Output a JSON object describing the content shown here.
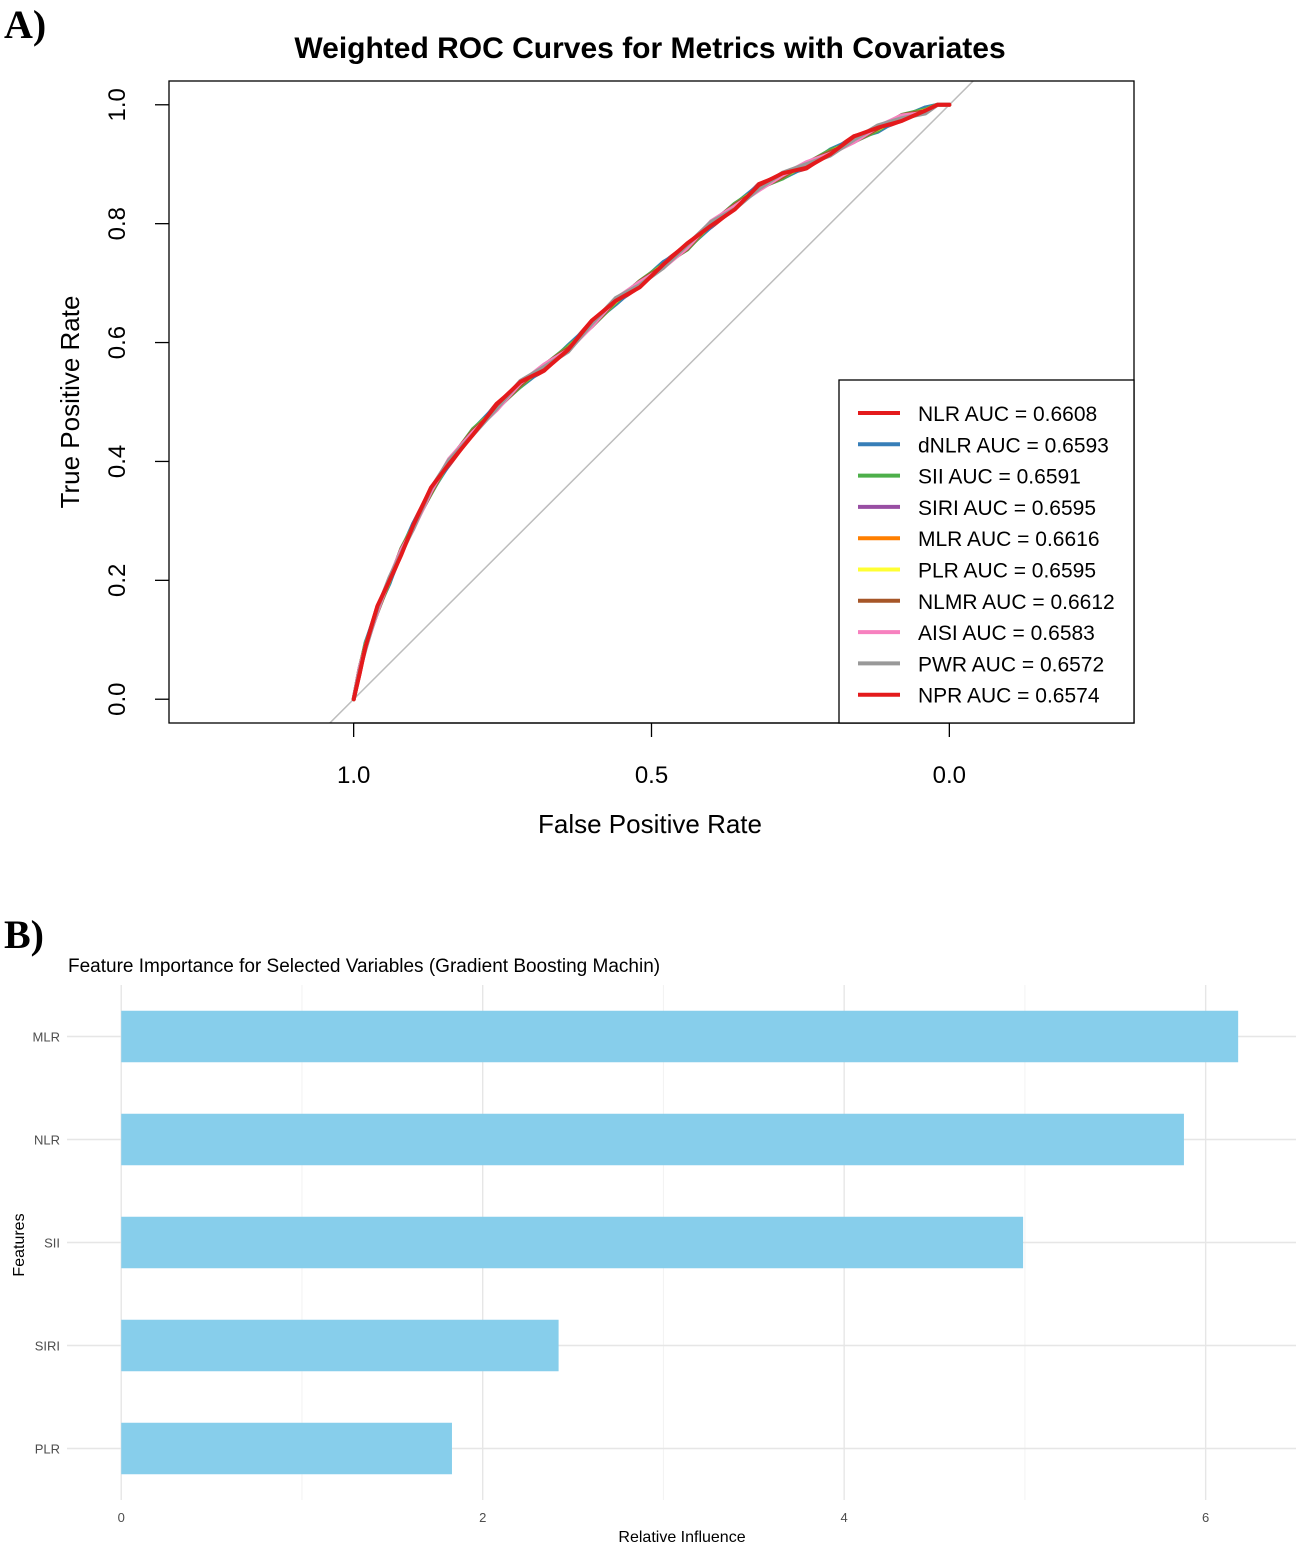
{
  "panels": {
    "a_label": "A)",
    "b_label": "B)"
  },
  "chart_data": [
    {
      "type": "line",
      "title": "Weighted ROC Curves for Metrics with Covariates",
      "xlabel": "False Positive Rate",
      "ylabel": "True Positive Rate",
      "xlim": [
        1.31,
        -0.31
      ],
      "ylim": [
        -0.04,
        1.04
      ],
      "x_ticks": [
        "1.0",
        "0.5",
        "0.0"
      ],
      "x_tick_values": [
        1.0,
        0.5,
        0.0
      ],
      "y_ticks": [
        "0.0",
        "0.2",
        "0.4",
        "0.6",
        "0.8",
        "1.0"
      ],
      "y_tick_values": [
        0.0,
        0.2,
        0.4,
        0.6,
        0.8,
        1.0
      ],
      "legend_position": "bottom-right",
      "reference_line": "diagonal",
      "roc_points": {
        "x": [
          1.0,
          0.99,
          0.98,
          0.96,
          0.94,
          0.92,
          0.9,
          0.87,
          0.84,
          0.8,
          0.76,
          0.72,
          0.68,
          0.64,
          0.6,
          0.56,
          0.52,
          0.48,
          0.44,
          0.4,
          0.36,
          0.32,
          0.28,
          0.24,
          0.2,
          0.16,
          0.12,
          0.08,
          0.04,
          0.02,
          0.0
        ],
        "y": [
          0.0,
          0.05,
          0.09,
          0.15,
          0.2,
          0.25,
          0.29,
          0.35,
          0.4,
          0.45,
          0.49,
          0.53,
          0.56,
          0.59,
          0.63,
          0.67,
          0.7,
          0.73,
          0.76,
          0.8,
          0.83,
          0.86,
          0.88,
          0.9,
          0.92,
          0.94,
          0.96,
          0.98,
          0.99,
          1.0,
          1.0
        ]
      },
      "series": [
        {
          "name": "NLR",
          "label": "NLR AUC = 0.6608",
          "auc": 0.6608,
          "color": "#E41A1C"
        },
        {
          "name": "dNLR",
          "label": "dNLR AUC = 0.6593",
          "auc": 0.6593,
          "color": "#377EB8"
        },
        {
          "name": "SII",
          "label": "SII AUC = 0.6591",
          "auc": 0.6591,
          "color": "#4DAF4A"
        },
        {
          "name": "SIRI",
          "label": "SIRI AUC = 0.6595",
          "auc": 0.6595,
          "color": "#984EA3"
        },
        {
          "name": "MLR",
          "label": "MLR AUC = 0.6616",
          "auc": 0.6616,
          "color": "#FF7F00"
        },
        {
          "name": "PLR",
          "label": "PLR AUC = 0.6595",
          "auc": 0.6595,
          "color": "#FFFF33"
        },
        {
          "name": "NLMR",
          "label": "NLMR AUC = 0.6612",
          "auc": 0.6612,
          "color": "#A65628"
        },
        {
          "name": "AISI",
          "label": "AISI AUC = 0.6583",
          "auc": 0.6583,
          "color": "#F781BF"
        },
        {
          "name": "PWR",
          "label": "PWR AUC = 0.6572",
          "auc": 0.6572,
          "color": "#999999"
        },
        {
          "name": "NPR",
          "label": "NPR AUC = 0.6574",
          "auc": 0.6574,
          "color": "#E41A1C"
        }
      ]
    },
    {
      "type": "bar",
      "orientation": "horizontal",
      "title": "Feature Importance for Selected Variables (Gradient Boosting Machin)",
      "xlabel": "Relative Influence",
      "ylabel": "Features",
      "categories": [
        "MLR",
        "NLR",
        "SII",
        "SIRI",
        "PLR"
      ],
      "values": [
        6.18,
        5.88,
        4.99,
        2.42,
        1.83
      ],
      "xlim": [
        -0.3,
        6.5
      ],
      "x_ticks": [
        "0",
        "2",
        "4",
        "6"
      ],
      "x_tick_values": [
        0,
        2,
        4,
        6
      ],
      "bar_color": "#87CEEB",
      "grid": true
    }
  ]
}
